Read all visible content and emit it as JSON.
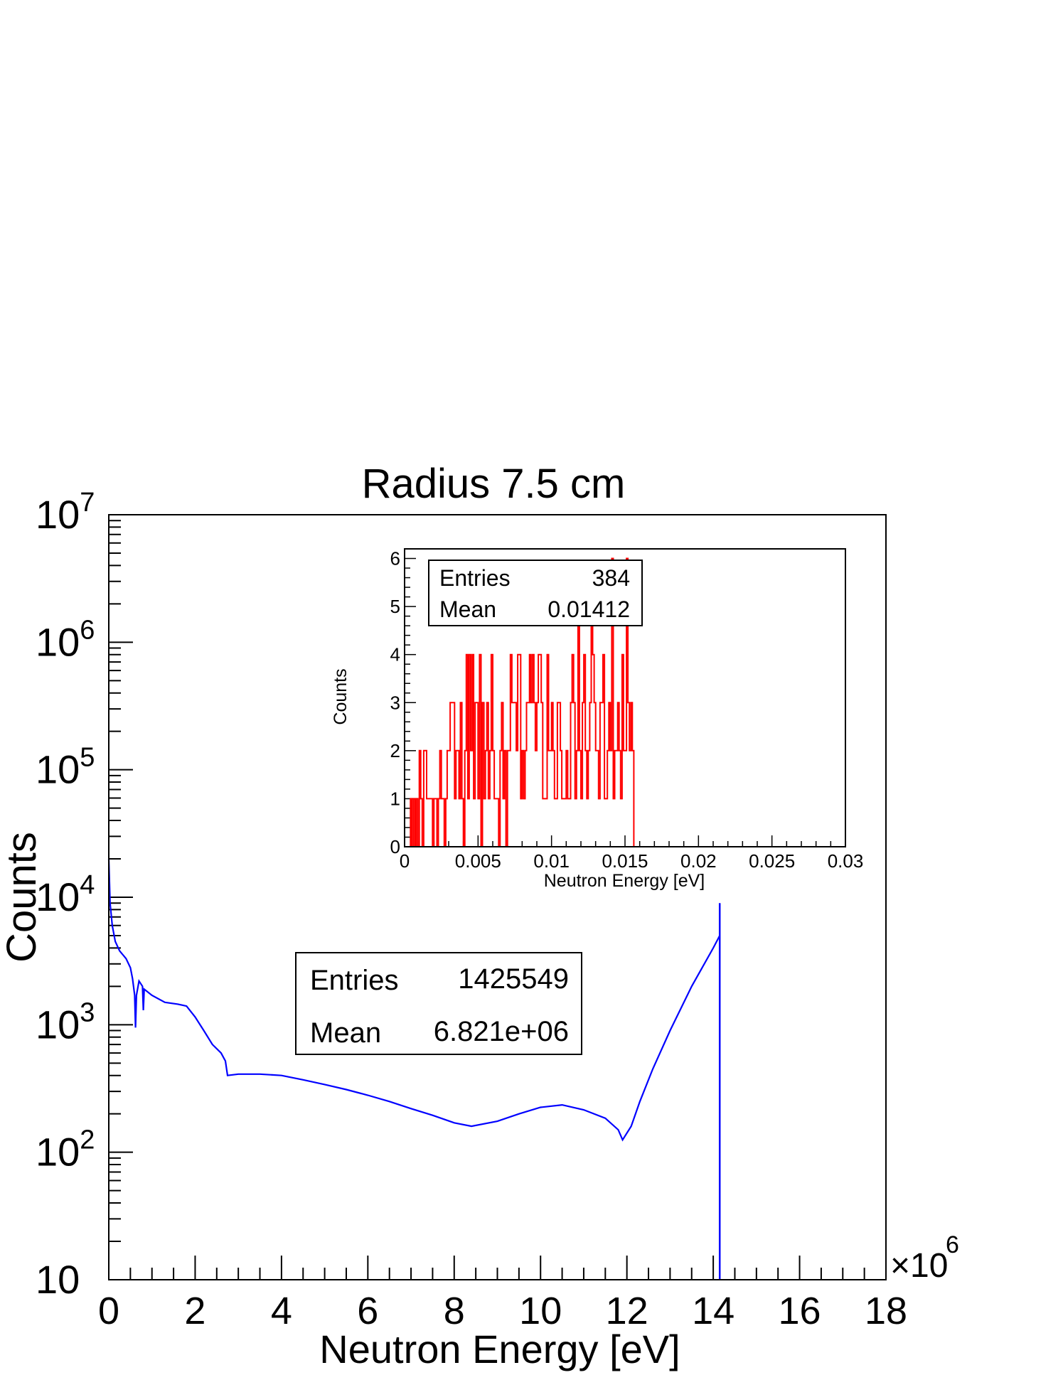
{
  "chart_data": [
    {
      "id": "main",
      "type": "line",
      "title": "Radius 7.5 cm",
      "xlabel": "Neutron Energy [eV]",
      "ylabel": "Counts",
      "x_multiplier": "×10",
      "x_multiplier_exp": "6",
      "xlim": [
        0,
        18
      ],
      "ylim": [
        10,
        10000000
      ],
      "yscale": "log",
      "x_ticks": [
        "0",
        "2",
        "4",
        "6",
        "8",
        "10",
        "12",
        "14",
        "16",
        "18"
      ],
      "y_ticks": [
        {
          "base": "10",
          "exp": ""
        },
        {
          "base": "10",
          "exp": "2"
        },
        {
          "base": "10",
          "exp": "3"
        },
        {
          "base": "10",
          "exp": "4"
        },
        {
          "base": "10",
          "exp": "5"
        },
        {
          "base": "10",
          "exp": "6"
        },
        {
          "base": "10",
          "exp": "7"
        }
      ],
      "line_color": "#0000ff",
      "series_points": [
        [
          0.0,
          20000
        ],
        [
          0.03,
          9000
        ],
        [
          0.08,
          6000
        ],
        [
          0.15,
          4500
        ],
        [
          0.25,
          3800
        ],
        [
          0.4,
          3300
        ],
        [
          0.5,
          2800
        ],
        [
          0.55,
          2300
        ],
        [
          0.6,
          1700
        ],
        [
          0.62,
          950
        ],
        [
          0.64,
          1700
        ],
        [
          0.7,
          2200
        ],
        [
          0.78,
          2000
        ],
        [
          0.8,
          1300
        ],
        [
          0.82,
          1900
        ],
        [
          1.0,
          1700
        ],
        [
          1.3,
          1500
        ],
        [
          1.6,
          1450
        ],
        [
          1.8,
          1400
        ],
        [
          2.0,
          1150
        ],
        [
          2.2,
          900
        ],
        [
          2.4,
          700
        ],
        [
          2.6,
          600
        ],
        [
          2.7,
          520
        ],
        [
          2.75,
          400
        ],
        [
          3.0,
          410
        ],
        [
          3.5,
          410
        ],
        [
          4.0,
          400
        ],
        [
          4.5,
          370
        ],
        [
          5.0,
          340
        ],
        [
          5.5,
          310
        ],
        [
          6.0,
          280
        ],
        [
          6.5,
          250
        ],
        [
          7.0,
          220
        ],
        [
          7.5,
          195
        ],
        [
          8.0,
          170
        ],
        [
          8.4,
          160
        ],
        [
          9.0,
          175
        ],
        [
          9.5,
          200
        ],
        [
          10.0,
          225
        ],
        [
          10.5,
          235
        ],
        [
          11.0,
          215
        ],
        [
          11.5,
          185
        ],
        [
          11.8,
          150
        ],
        [
          11.9,
          125
        ],
        [
          12.1,
          160
        ],
        [
          12.3,
          250
        ],
        [
          12.6,
          450
        ],
        [
          13.0,
          900
        ],
        [
          13.5,
          2000
        ],
        [
          14.0,
          4000
        ],
        [
          14.15,
          5000
        ]
      ],
      "spike": {
        "x": 14.15,
        "y": 9000
      },
      "stats": {
        "entries_label": "Entries",
        "entries_value": "1425549",
        "mean_label": "Mean",
        "mean_value": "6.821e+06"
      }
    },
    {
      "id": "inset",
      "type": "bar",
      "xlabel": "Neutron Energy [eV]",
      "ylabel": "Counts",
      "xlim": [
        0,
        0.03
      ],
      "ylim": [
        0,
        6.2
      ],
      "x_ticks": [
        "0",
        "0.005",
        "0.01",
        "0.015",
        "0.02",
        "0.025",
        "0.03"
      ],
      "y_ticks": [
        "0",
        "1",
        "2",
        "3",
        "4",
        "5",
        "6"
      ],
      "line_color": "#ff0000",
      "bin_width": 0.0001,
      "x_start": 0.0004,
      "values": [
        1,
        0,
        1,
        0,
        1,
        0,
        2,
        1,
        0,
        2,
        2,
        1,
        1,
        1,
        1,
        0,
        1,
        1,
        0,
        1,
        2,
        1,
        1,
        0,
        1,
        2,
        2,
        3,
        3,
        3,
        1,
        2,
        2,
        1,
        3,
        1,
        0,
        2,
        4,
        1,
        4,
        2,
        4,
        1,
        3,
        3,
        1,
        4,
        0,
        3,
        1,
        2,
        3,
        1,
        2,
        4,
        2,
        1,
        1,
        1,
        0,
        2,
        3,
        1,
        2,
        0,
        2,
        2,
        4,
        3,
        3,
        3,
        2,
        4,
        4,
        1,
        2,
        1,
        2,
        3,
        3,
        4,
        3,
        4,
        3,
        2,
        3,
        4,
        4,
        3,
        1,
        1,
        1,
        4,
        2,
        2,
        3,
        2,
        1,
        1,
        3,
        3,
        2,
        1,
        1,
        1,
        2,
        1,
        1,
        3,
        4,
        3,
        1,
        2,
        5,
        2,
        1,
        3,
        4,
        2,
        1,
        2,
        3,
        5,
        4,
        3,
        2,
        2,
        1,
        3,
        3,
        4,
        1,
        1,
        2,
        3,
        2,
        6,
        1,
        2,
        2,
        3,
        2,
        1,
        4,
        2,
        2,
        6,
        3,
        2,
        3,
        2
      ],
      "stats": {
        "entries_label": "Entries",
        "entries_value": "384",
        "mean_label": "Mean",
        "mean_value": "0.01412"
      }
    }
  ]
}
